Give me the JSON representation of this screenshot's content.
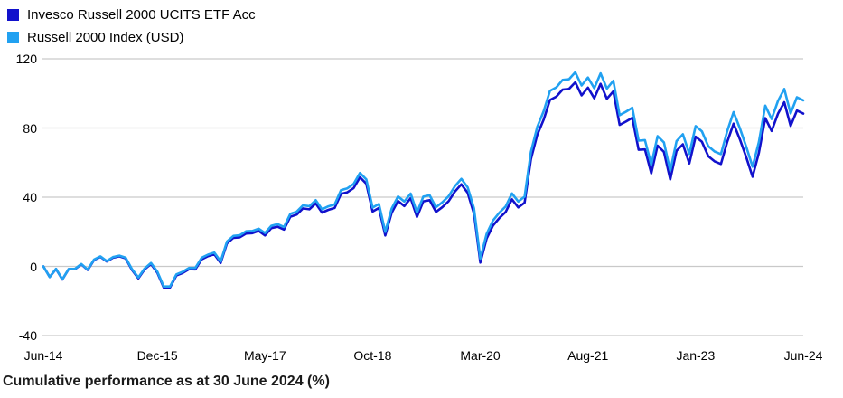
{
  "legend": {
    "items": [
      {
        "label": "Invesco Russell 2000 UCITS ETF Acc",
        "color": "#1111CC"
      },
      {
        "label": "Russell 2000 Index (USD)",
        "color": "#21A1F1"
      }
    ]
  },
  "footer": {
    "caption": "Cumulative performance as at 30 June 2024 (%)"
  },
  "chart_data": {
    "type": "line",
    "title": "Cumulative performance as at 30 June 2024 (%)",
    "xlabel": "",
    "ylabel": "",
    "ylim": [
      -40,
      120
    ],
    "yticks": [
      120,
      80,
      40,
      0,
      -40
    ],
    "ytick_labels": [
      "120",
      "80",
      "40",
      "0",
      "-40"
    ],
    "xtick_labels": [
      "Jun-14",
      "Dec-15",
      "May-17",
      "Oct-18",
      "Mar-20",
      "Aug-21",
      "Jan-23",
      "Jun-24"
    ],
    "xtick_month_index": [
      0,
      18,
      35,
      52,
      69,
      86,
      103,
      120
    ],
    "grid": "horizontal",
    "grid_color": "#C9C9C9",
    "legend_position": "top-left",
    "x": [
      "Jun-14",
      "Jul-14",
      "Aug-14",
      "Sep-14",
      "Oct-14",
      "Nov-14",
      "Dec-14",
      "Jan-15",
      "Feb-15",
      "Mar-15",
      "Apr-15",
      "May-15",
      "Jun-15",
      "Jul-15",
      "Aug-15",
      "Sep-15",
      "Oct-15",
      "Nov-15",
      "Dec-15",
      "Jan-16",
      "Feb-16",
      "Mar-16",
      "Apr-16",
      "May-16",
      "Jun-16",
      "Jul-16",
      "Aug-16",
      "Sep-16",
      "Oct-16",
      "Nov-16",
      "Dec-16",
      "Jan-17",
      "Feb-17",
      "Mar-17",
      "Apr-17",
      "May-17",
      "Jun-17",
      "Jul-17",
      "Aug-17",
      "Sep-17",
      "Oct-17",
      "Nov-17",
      "Dec-17",
      "Jan-18",
      "Feb-18",
      "Mar-18",
      "Apr-18",
      "May-18",
      "Jun-18",
      "Jul-18",
      "Aug-18",
      "Sep-18",
      "Oct-18",
      "Nov-18",
      "Dec-18",
      "Jan-19",
      "Feb-19",
      "Mar-19",
      "Apr-19",
      "May-19",
      "Jun-19",
      "Jul-19",
      "Aug-19",
      "Sep-19",
      "Oct-19",
      "Nov-19",
      "Dec-19",
      "Jan-20",
      "Feb-20",
      "Mar-20",
      "Apr-20",
      "May-20",
      "Jun-20",
      "Jul-20",
      "Aug-20",
      "Sep-20",
      "Oct-20",
      "Nov-20",
      "Dec-20",
      "Jan-21",
      "Feb-21",
      "Mar-21",
      "Apr-21",
      "May-21",
      "Jun-21",
      "Jul-21",
      "Aug-21",
      "Sep-21",
      "Oct-21",
      "Nov-21",
      "Dec-21",
      "Jan-22",
      "Feb-22",
      "Mar-22",
      "Apr-22",
      "May-22",
      "Jun-22",
      "Jul-22",
      "Aug-22",
      "Sep-22",
      "Oct-22",
      "Nov-22",
      "Dec-22",
      "Jan-23",
      "Feb-23",
      "Mar-23",
      "Apr-23",
      "May-23",
      "Jun-23",
      "Jul-23",
      "Aug-23",
      "Sep-23",
      "Oct-23",
      "Nov-23",
      "Dec-23",
      "Jan-24",
      "Feb-24",
      "Mar-24",
      "Apr-24",
      "May-24",
      "Jun-24"
    ],
    "series": [
      {
        "name": "Invesco Russell 2000 UCITS ETF Acc",
        "color": "#1111CC",
        "values": [
          0,
          -6.1,
          -1.5,
          -7.6,
          -1.6,
          -1.6,
          1.2,
          -2.1,
          3.7,
          5.5,
          2.8,
          5.0,
          5.8,
          4.6,
          -2.1,
          -6.9,
          -1.7,
          1.4,
          -3.7,
          -12.2,
          -12.2,
          -5.3,
          -3.8,
          -1.6,
          -1.7,
          4.1,
          5.9,
          7.0,
          2.0,
          13.3,
          16.5,
          16.8,
          19.0,
          19.2,
          20.5,
          17.9,
          22.1,
          22.9,
          21.3,
          28.7,
          29.9,
          33.5,
          33.0,
          36.4,
          31.1,
          32.7,
          33.8,
          41.9,
          42.8,
          45.3,
          51.5,
          47.8,
          31.7,
          33.8,
          17.9,
          31.0,
          37.8,
          34.9,
          39.4,
          28.6,
          37.6,
          38.3,
          31.5,
          34.2,
          37.7,
          43.3,
          47.4,
          42.5,
          30.5,
          2.2,
          16.1,
          23.6,
          27.9,
          31.4,
          38.8,
          34.1,
          36.8,
          62.0,
          76.0,
          84.8,
          96.2,
          98.1,
          102.2,
          102.6,
          106.4,
          98.9,
          103.3,
          97.2,
          105.5,
          96.9,
          101.2,
          81.8,
          83.7,
          85.9,
          67.4,
          67.6,
          53.8,
          69.8,
          66.2,
          50.3,
          66.8,
          70.6,
          59.5,
          75.0,
          72.0,
          63.7,
          60.7,
          59.2,
          72.0,
          82.5,
          73.4,
          63.1,
          51.8,
          65.6,
          85.7,
          78.3,
          88.2,
          94.9,
          81.2,
          90.1,
          88.3
        ]
      },
      {
        "name": "Russell 2000 Index (USD)",
        "color": "#21A1F1",
        "values": [
          0,
          -6.1,
          -1.4,
          -7.5,
          -1.5,
          -1.4,
          1.4,
          -1.9,
          4.0,
          5.8,
          3.1,
          5.4,
          6.2,
          5.0,
          -1.6,
          -6.4,
          -1.2,
          2.0,
          -3.1,
          -11.6,
          -11.6,
          -4.6,
          -3.1,
          -0.9,
          -0.9,
          5.0,
          6.8,
          8.0,
          2.9,
          14.4,
          17.6,
          18.0,
          20.3,
          20.5,
          21.8,
          19.3,
          23.5,
          24.4,
          22.8,
          30.4,
          31.6,
          35.3,
          34.8,
          38.3,
          33.0,
          34.7,
          35.8,
          44.1,
          45.1,
          47.7,
          54.0,
          50.3,
          34.0,
          36.1,
          20.0,
          33.4,
          40.4,
          37.5,
          42.1,
          31.1,
          40.3,
          41.1,
          34.2,
          37.0,
          40.6,
          46.4,
          50.6,
          45.7,
          33.5,
          4.5,
          18.8,
          26.5,
          31.0,
          34.6,
          42.2,
          37.5,
          40.3,
          66.2,
          80.6,
          89.7,
          101.5,
          103.5,
          107.8,
          108.2,
          112.2,
          104.6,
          109.2,
          103.0,
          111.6,
          102.8,
          107.3,
          87.4,
          89.4,
          91.7,
          72.7,
          73.0,
          58.8,
          75.3,
          71.7,
          55.3,
          72.4,
          76.4,
          65.0,
          81.1,
          78.0,
          69.5,
          66.4,
          64.9,
          78.3,
          89.2,
          79.8,
          69.2,
          57.6,
          71.9,
          92.9,
          85.2,
          95.6,
          102.6,
          88.4,
          97.8,
          96.0
        ]
      }
    ]
  }
}
